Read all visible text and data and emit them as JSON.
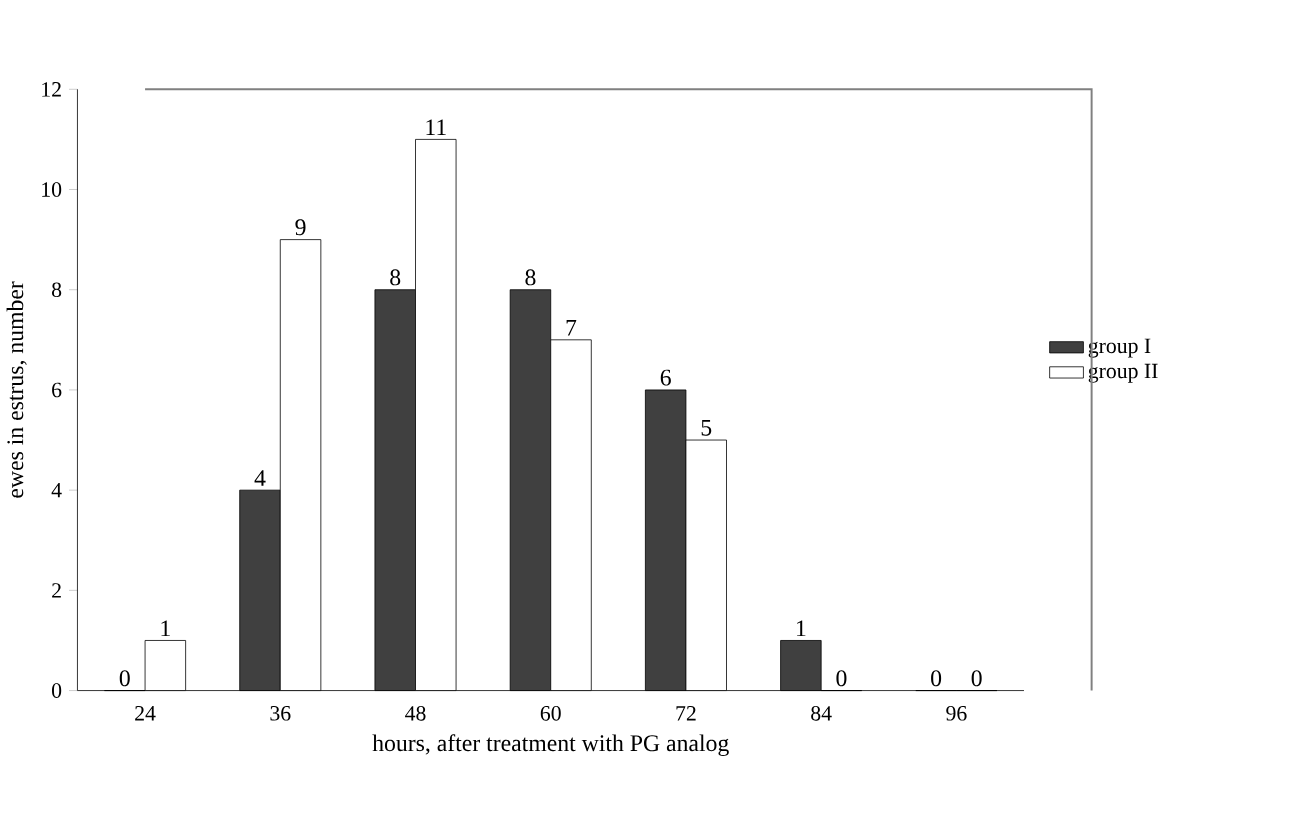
{
  "chart_data": {
    "type": "bar",
    "xlabel": "hours, after treatment with PG analog",
    "ylabel": "ewes in estrus, number",
    "categories": [
      "24",
      "36",
      "48",
      "60",
      "72",
      "84",
      "96"
    ],
    "series": [
      {
        "name": "group I",
        "color": "#404040",
        "values": [
          0,
          4,
          8,
          8,
          6,
          1,
          0
        ]
      },
      {
        "name": "group II",
        "color": "#ffffff",
        "values": [
          1,
          9,
          11,
          7,
          5,
          0,
          0
        ]
      }
    ],
    "ylim": [
      0,
      12
    ],
    "yticks": [
      0,
      2,
      4,
      6,
      8,
      10,
      12
    ],
    "data_labels": true,
    "legend": "right",
    "grid": false
  }
}
